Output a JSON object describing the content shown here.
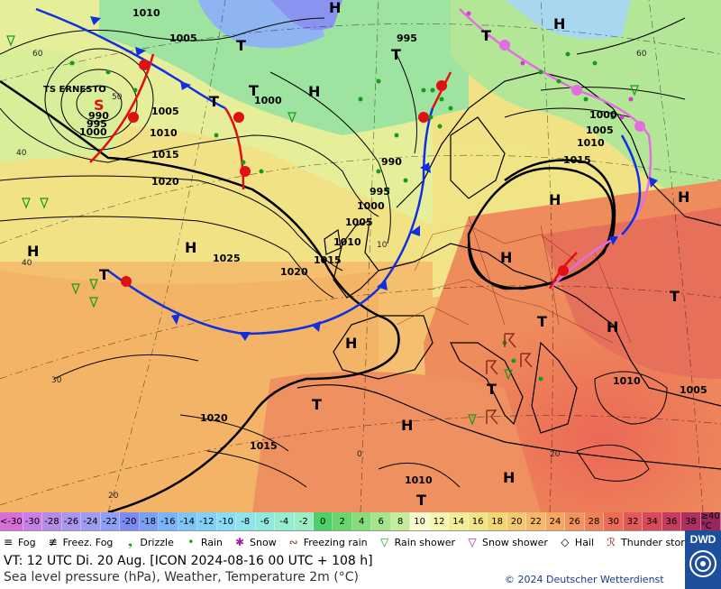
{
  "map": {
    "pressure_labels": [
      "1010",
      "1005",
      "995",
      "1000",
      "990",
      "995",
      "1000",
      "1005",
      "1010",
      "1015",
      "1020",
      "1025",
      "1020",
      "1015",
      "1010",
      "1015",
      "1010",
      "1020",
      "1015",
      "1010",
      "1005",
      "1010",
      "1005",
      "1000",
      "990",
      "995",
      "1000",
      "1005"
    ],
    "high_marks": [
      "H",
      "H",
      "H",
      "H",
      "H",
      "H",
      "H",
      "H",
      "H",
      "H",
      "H",
      "H"
    ],
    "low_marks": [
      "T",
      "T",
      "T",
      "T",
      "T",
      "T",
      "T",
      "T",
      "T",
      "T",
      "T"
    ],
    "storm_label": "TS ERNESTO",
    "lat_labels": [
      "60",
      "50",
      "40",
      "30",
      "20",
      "40",
      "60"
    ],
    "lon_labels": [
      "0",
      "10",
      "20"
    ]
  },
  "scale": {
    "cells": [
      {
        "label": "<-30",
        "color": "#d86fd8"
      },
      {
        "label": "-30",
        "color": "#c680e8"
      },
      {
        "label": "-28",
        "color": "#b58be8"
      },
      {
        "label": "-26",
        "color": "#a796ec"
      },
      {
        "label": "-24",
        "color": "#9e9cf2"
      },
      {
        "label": "-22",
        "color": "#8f9ef6"
      },
      {
        "label": "-20",
        "color": "#7c8cf4"
      },
      {
        "label": "-18",
        "color": "#7aa0f6"
      },
      {
        "label": "-16",
        "color": "#7ab4f6"
      },
      {
        "label": "-14",
        "color": "#7ec4f6"
      },
      {
        "label": "-12",
        "color": "#82d0f6"
      },
      {
        "label": "-10",
        "color": "#8adcf6"
      },
      {
        "label": "-8",
        "color": "#8ee4ec"
      },
      {
        "label": "-6",
        "color": "#92e8de"
      },
      {
        "label": "-4",
        "color": "#96ecd0"
      },
      {
        "label": "-2",
        "color": "#9aeec2"
      },
      {
        "label": "0",
        "color": "#4fcf6a"
      },
      {
        "label": "2",
        "color": "#6ad46e"
      },
      {
        "label": "4",
        "color": "#86dc7a"
      },
      {
        "label": "6",
        "color": "#a4e48a"
      },
      {
        "label": "8",
        "color": "#c4ec9a"
      },
      {
        "label": "10",
        "color": "#fafad2"
      },
      {
        "label": "12",
        "color": "#f6f6b0"
      },
      {
        "label": "14",
        "color": "#f2ee98"
      },
      {
        "label": "16",
        "color": "#f0e486"
      },
      {
        "label": "18",
        "color": "#f2d676"
      },
      {
        "label": "20",
        "color": "#f4c870"
      },
      {
        "label": "22",
        "color": "#f4b86a"
      },
      {
        "label": "24",
        "color": "#f4a664"
      },
      {
        "label": "26",
        "color": "#f2945e"
      },
      {
        "label": "28",
        "color": "#f08058"
      },
      {
        "label": "30",
        "color": "#ec6c56"
      },
      {
        "label": "32",
        "color": "#e25a58"
      },
      {
        "label": "34",
        "color": "#d64a5a"
      },
      {
        "label": "36",
        "color": "#c43c5e"
      },
      {
        "label": "38",
        "color": "#b03060"
      },
      {
        "label": "≥40 °C",
        "color": "#9a2660"
      }
    ]
  },
  "legend": [
    {
      "label": "Fog",
      "icon": "fog-icon",
      "glyph": "≡"
    },
    {
      "label": "Freez. Fog",
      "icon": "freezing-fog-icon",
      "glyph": "≢"
    },
    {
      "label": "Drizzle",
      "icon": "drizzle-icon",
      "glyph": "❟"
    },
    {
      "label": "Rain",
      "icon": "rain-icon",
      "glyph": "•"
    },
    {
      "label": "Snow",
      "icon": "snow-icon",
      "glyph": "✱"
    },
    {
      "label": "Freezing rain",
      "icon": "freezing-rain-icon",
      "glyph": "∾"
    },
    {
      "label": "Rain shower",
      "icon": "rain-shower-icon",
      "glyph": "▽"
    },
    {
      "label": "Snow shower",
      "icon": "snow-shower-icon",
      "glyph": "▽"
    },
    {
      "label": "Hail",
      "icon": "hail-icon",
      "glyph": "◇"
    },
    {
      "label": "Thunder storm",
      "icon": "thunderstorm-icon",
      "glyph": "ℛ"
    }
  ],
  "footer": {
    "valid_time": "VT: 12 UTC Di.  20 Aug. [ICON 2024-08-16  00 UTC + 108 h]",
    "description": "Sea level pressure (hPa), Weather, Temperature 2m (°C)",
    "copyright": "© 2024 Deutscher Wetterdienst",
    "logo_text": "DWD"
  },
  "colors": {
    "cold_front": "#1030e0",
    "warm_front": "#e01010",
    "occlusion": "#e070e0",
    "rain": "#1a9a1a"
  }
}
